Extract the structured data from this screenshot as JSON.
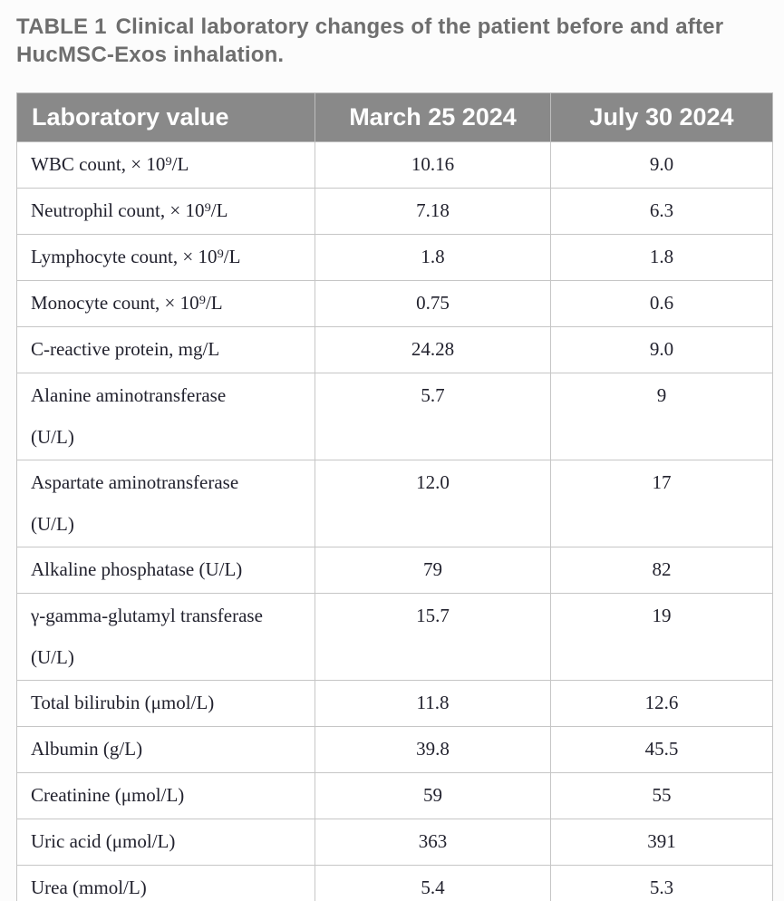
{
  "title": {
    "label": "TABLE 1",
    "caption": "Clinical laboratory changes of the patient before and after HucMSC-Exos inhalation."
  },
  "colors": {
    "header_bg": "#898989",
    "header_text": "#ffffff",
    "caption_text": "#6e6e6e",
    "border": "#c6c6c6"
  },
  "table": {
    "columns": [
      "Laboratory value",
      "March 25 2024",
      "July 30 2024"
    ],
    "rows": [
      {
        "label": "WBC count, × 10⁹/L",
        "label2": "",
        "march": "10.16",
        "july": "9.0"
      },
      {
        "label": "Neutrophil count, × 10⁹/L",
        "label2": "",
        "march": "7.18",
        "july": "6.3"
      },
      {
        "label": "Lymphocyte count, × 10⁹/L",
        "label2": "",
        "march": "1.8",
        "july": "1.8"
      },
      {
        "label": "Monocyte count, × 10⁹/L",
        "label2": "",
        "march": "0.75",
        "july": "0.6"
      },
      {
        "label": "C-reactive protein, mg/L",
        "label2": "",
        "march": "24.28",
        "july": "9.0"
      },
      {
        "label": "Alanine aminotransferase",
        "label2": "(U/L)",
        "march": "5.7",
        "july": "9"
      },
      {
        "label": "Aspartate aminotransferase",
        "label2": "(U/L)",
        "march": "12.0",
        "july": "17"
      },
      {
        "label": "Alkaline phosphatase (U/L)",
        "label2": "",
        "march": "79",
        "july": "82"
      },
      {
        "label": "γ-gamma-glutamyl transferase",
        "label2": "(U/L)",
        "march": "15.7",
        "july": "19"
      },
      {
        "label": "Total bilirubin (μmol/L)",
        "label2": "",
        "march": "11.8",
        "july": "12.6"
      },
      {
        "label": "Albumin (g/L)",
        "label2": "",
        "march": "39.8",
        "july": "45.5"
      },
      {
        "label": "Creatinine (μmol/L)",
        "label2": "",
        "march": "59",
        "july": "55"
      },
      {
        "label": "Uric acid (μmol/L)",
        "label2": "",
        "march": "363",
        "july": "391"
      },
      {
        "label": "Urea (mmol/L)",
        "label2": "",
        "march": "5.4",
        "july": "5.3"
      }
    ]
  }
}
